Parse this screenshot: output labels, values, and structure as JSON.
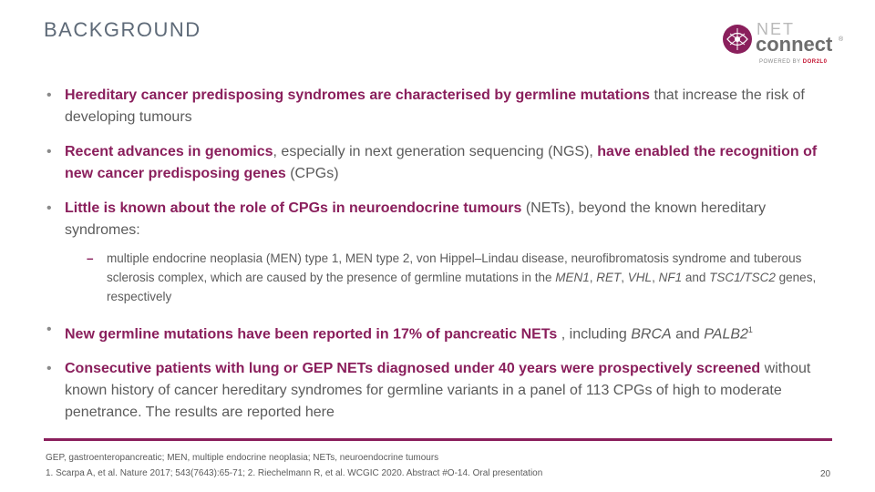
{
  "slide": {
    "title": "BACKGROUND",
    "page_number": "20"
  },
  "logo": {
    "net": "NET",
    "connect": "connect",
    "trademark": "®",
    "powered_prefix": "POWERED BY ",
    "powered_brand": "DOR2L0"
  },
  "bullets": {
    "b1": {
      "em": "Hereditary cancer predisposing syndromes are characterised by germline mutations",
      "t1": " that increase the risk of developing tumours"
    },
    "b2": {
      "em1": "Recent advances in genomics",
      "t1": ", especially in next generation sequencing (NGS), ",
      "em2": "have enabled the recognition of new cancer predisposing genes",
      "t2": " (CPGs)"
    },
    "b3": {
      "em": "Little is known about the role of CPGs in neuroendocrine tumours",
      "t1": " (NETs), beyond the known hereditary syndromes:"
    },
    "sub": {
      "t1": "multiple endocrine neoplasia (MEN) type 1, MEN type 2, von Hippel–Lindau disease, neurofibromatosis syndrome and tuberous sclerosis complex, which are caused by the presence of germline mutations in the ",
      "g1": "MEN1",
      "s1": ", ",
      "g2": "RET",
      "s2": ", ",
      "g3": "VHL",
      "s3": ", ",
      "g4": "NF1",
      "s4": " and ",
      "g5": "TSC1/TSC2",
      "t2": " genes, respectively"
    },
    "b4": {
      "em": "New germline mutations have been reported in 17% of pancreatic NETs",
      "t1": " , including ",
      "g1": "BRCA",
      "t2": " and ",
      "g2": "PALB2",
      "sup": "1"
    },
    "b5": {
      "em": "Consecutive patients with lung or GEP NETs diagnosed under 40 years were prospectively screened",
      "t1": " without known history of cancer hereditary syndromes for germline variants in a panel of 113 CPGs of high to moderate penetrance. The results are reported here"
    }
  },
  "footer": {
    "abbreviations": "GEP, gastroenteropancreatic; MEN, multiple endocrine neoplasia; NETs, neuroendocrine tumours",
    "references": "1. Scarpa A, et al. Nature 2017; 543(7643):65-71;  2. Riechelmann R, et al. WCGIC 2020. Abstract #O-14. Oral presentation"
  },
  "colors": {
    "accent": "#8a1f5c",
    "title": "#5e6a78",
    "body_text": "#5b5b5b"
  }
}
